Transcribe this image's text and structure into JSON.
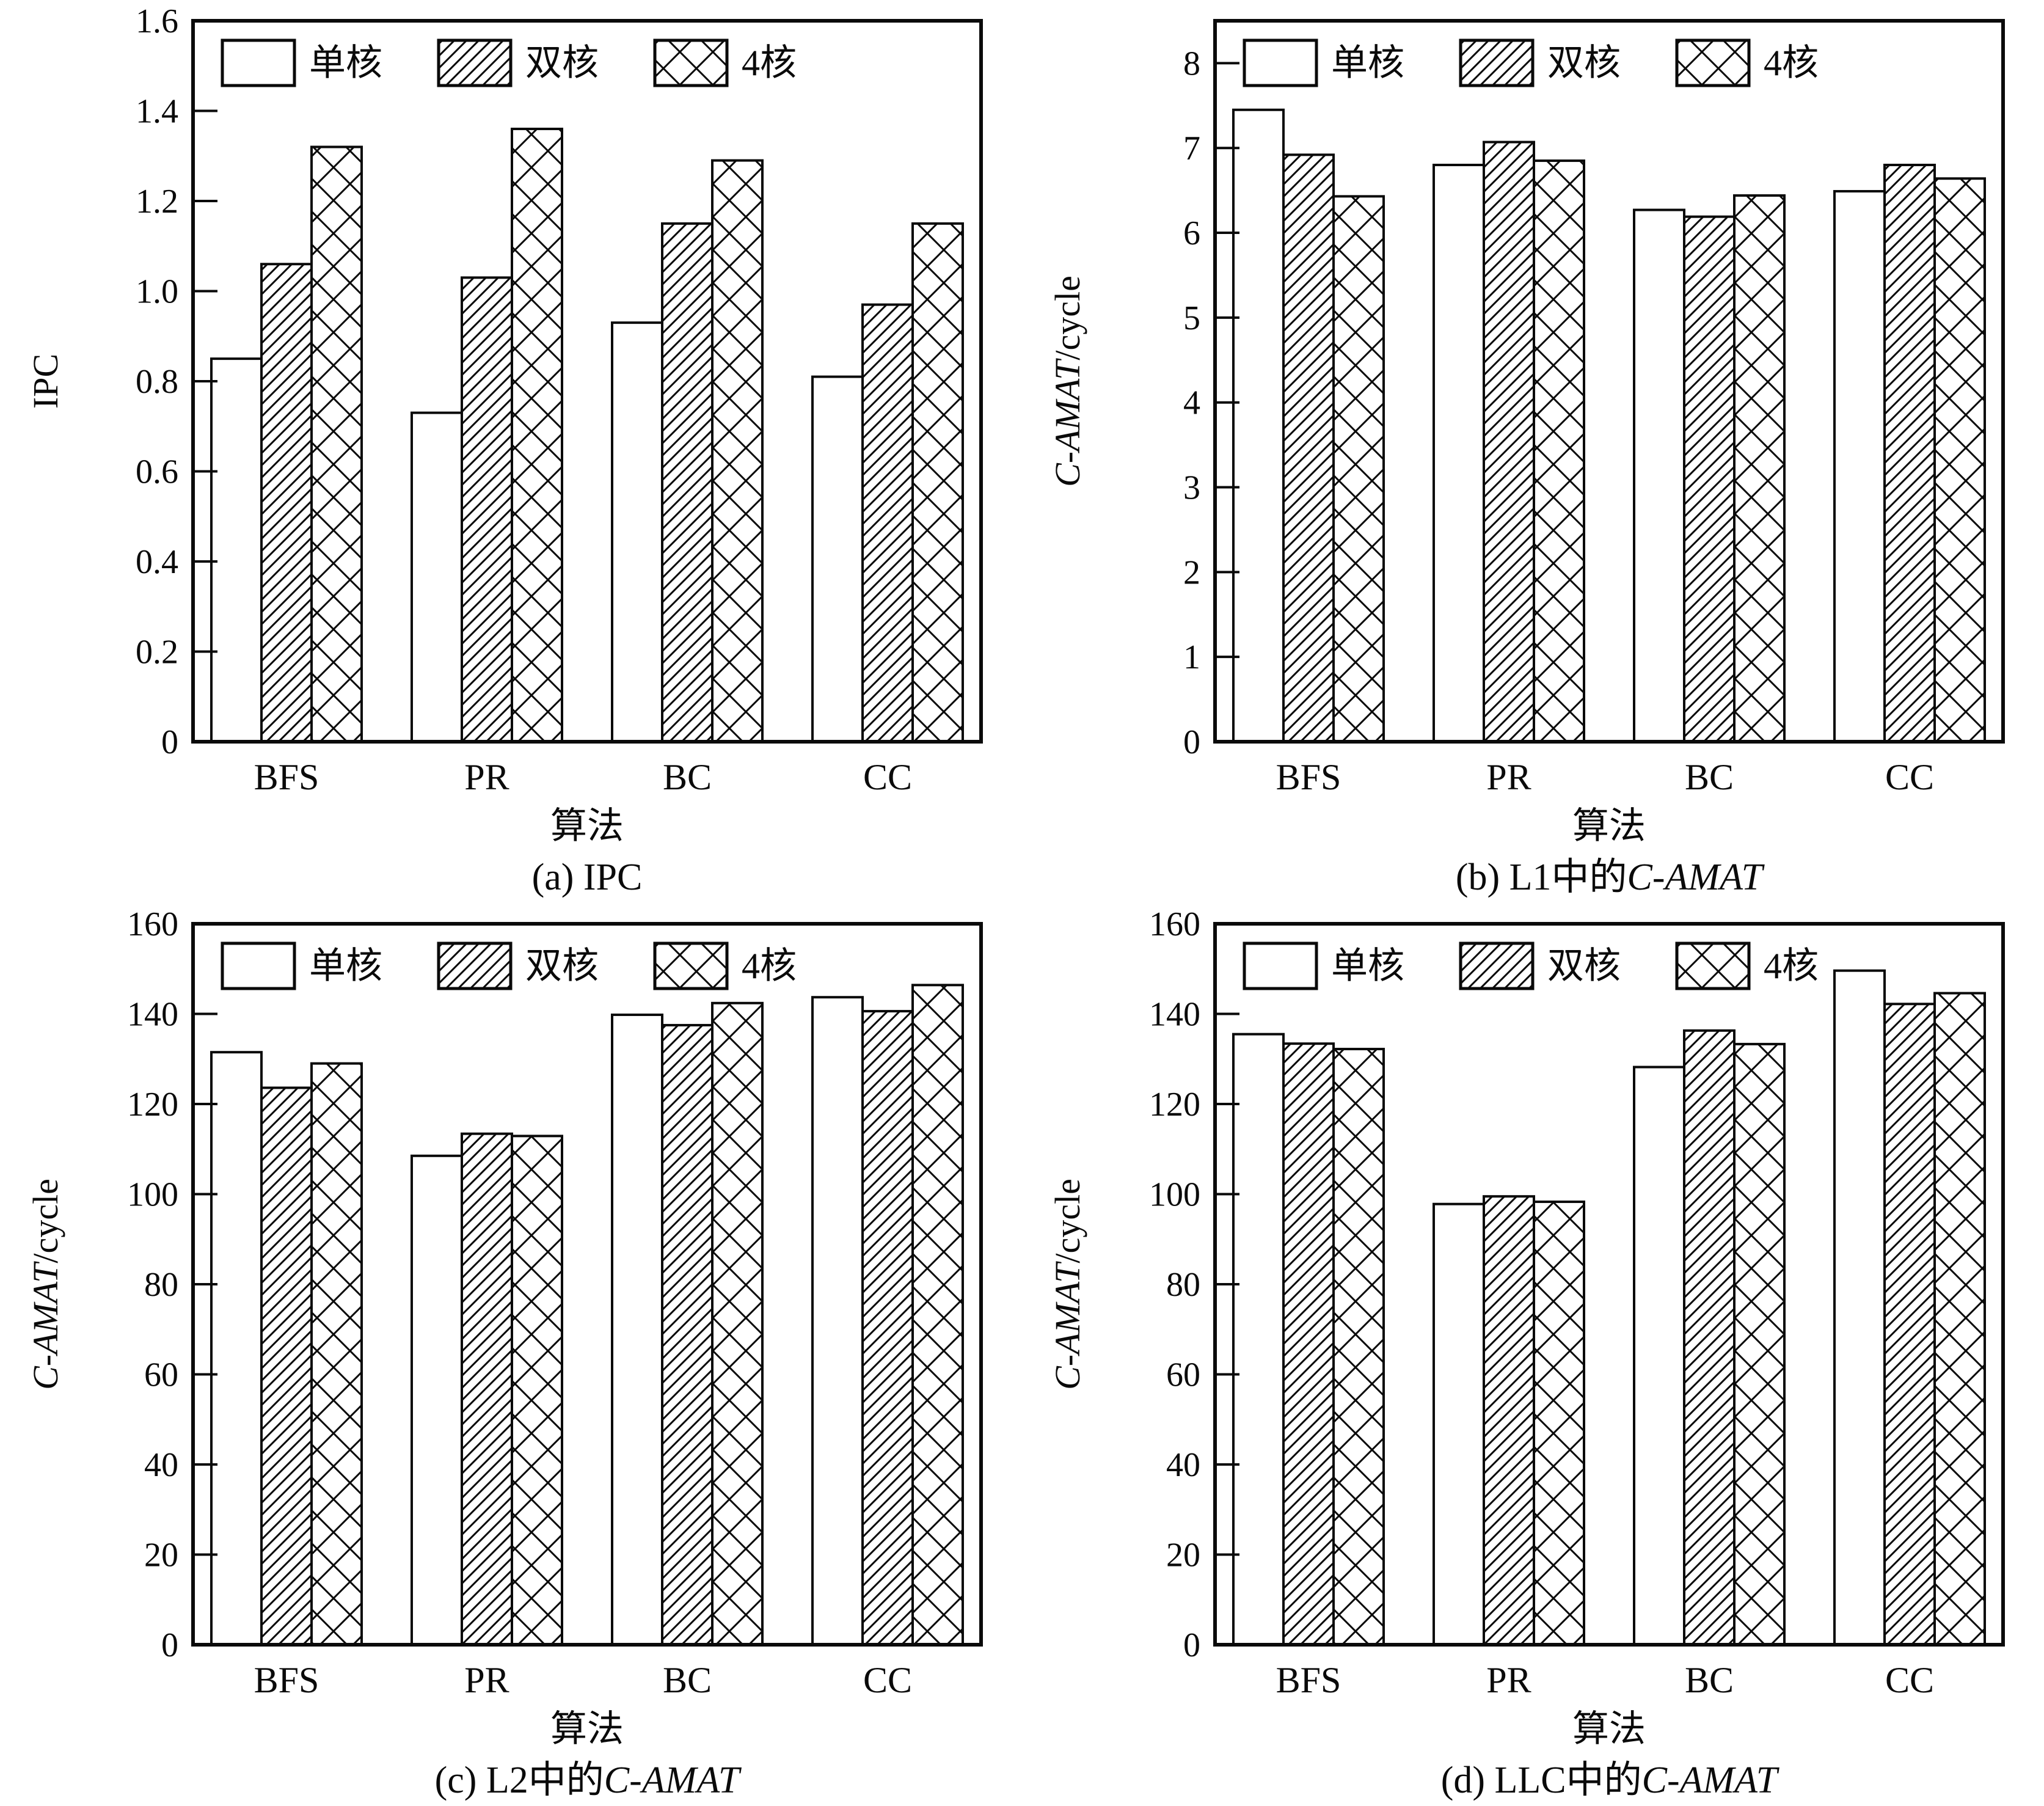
{
  "figure": {
    "background": "#ffffff",
    "ink_color": "#0a0a0a",
    "legend_labels": [
      "单核",
      "双核",
      "4核"
    ],
    "legend_patterns": [
      "solid-white",
      "diagonal-hatch",
      "cross-hatch"
    ]
  },
  "chart_data": [
    {
      "id": "a",
      "type": "bar",
      "caption": [
        {
          "text": "(a) IPC",
          "italic": false
        }
      ],
      "xlabel": "算法",
      "ylabel": [
        {
          "text": "IPC",
          "italic": false
        }
      ],
      "categories": [
        "BFS",
        "PR",
        "BC",
        "CC"
      ],
      "series": [
        {
          "name": "单核",
          "pattern": "solid-white",
          "values": [
            0.85,
            0.73,
            0.93,
            0.81
          ]
        },
        {
          "name": "双核",
          "pattern": "diagonal-hatch",
          "values": [
            1.06,
            1.03,
            1.15,
            0.97
          ]
        },
        {
          "name": "4核",
          "pattern": "cross-hatch",
          "values": [
            1.32,
            1.36,
            1.29,
            1.15
          ]
        }
      ],
      "ylim": [
        0,
        1.6
      ],
      "ytick_step": 0.2,
      "ytick_decimals": 1,
      "grid": false,
      "legend_position": "top-inside"
    },
    {
      "id": "b",
      "type": "bar",
      "caption": [
        {
          "text": "(b) L1中的",
          "italic": false
        },
        {
          "text": "C-AMAT",
          "italic": true
        }
      ],
      "xlabel": "算法",
      "ylabel": [
        {
          "text": "C-AMAT",
          "italic": true
        },
        {
          "text": "/cycle",
          "italic": false
        }
      ],
      "categories": [
        "BFS",
        "PR",
        "BC",
        "CC"
      ],
      "series": [
        {
          "name": "单核",
          "pattern": "solid-white",
          "values": [
            7.45,
            6.8,
            6.27,
            6.49
          ]
        },
        {
          "name": "双核",
          "pattern": "diagonal-hatch",
          "values": [
            6.92,
            7.07,
            6.19,
            6.8
          ]
        },
        {
          "name": "4核",
          "pattern": "cross-hatch",
          "values": [
            6.43,
            6.85,
            6.44,
            6.64
          ]
        }
      ],
      "ylim": [
        0,
        8.5
      ],
      "ytick_step": 1,
      "ytick_decimals": 0,
      "grid": false,
      "legend_position": "top-inside"
    },
    {
      "id": "c",
      "type": "bar",
      "caption": [
        {
          "text": "(c) L2中的",
          "italic": false
        },
        {
          "text": "C-AMAT",
          "italic": true
        }
      ],
      "xlabel": "算法",
      "ylabel": [
        {
          "text": "C-AMAT",
          "italic": true
        },
        {
          "text": "/cycle",
          "italic": false
        }
      ],
      "categories": [
        "BFS",
        "PR",
        "BC",
        "CC"
      ],
      "series": [
        {
          "name": "单核",
          "pattern": "solid-white",
          "values": [
            131.5,
            108.5,
            139.8,
            143.7
          ]
        },
        {
          "name": "双核",
          "pattern": "diagonal-hatch",
          "values": [
            123.6,
            113.4,
            137.5,
            140.6
          ]
        },
        {
          "name": "4核",
          "pattern": "cross-hatch",
          "values": [
            129.0,
            112.9,
            142.4,
            146.4
          ]
        }
      ],
      "ylim": [
        0,
        160
      ],
      "ytick_step": 20,
      "ytick_decimals": 0,
      "grid": false,
      "legend_position": "top-inside"
    },
    {
      "id": "d",
      "type": "bar",
      "caption": [
        {
          "text": "(d) LLC中的",
          "italic": false
        },
        {
          "text": "C-AMAT",
          "italic": true
        }
      ],
      "xlabel": "算法",
      "ylabel": [
        {
          "text": "C-AMAT",
          "italic": true
        },
        {
          "text": "/cycle",
          "italic": false
        }
      ],
      "categories": [
        "BFS",
        "PR",
        "BC",
        "CC"
      ],
      "series": [
        {
          "name": "单核",
          "pattern": "solid-white",
          "values": [
            135.5,
            97.8,
            128.2,
            149.6
          ]
        },
        {
          "name": "双核",
          "pattern": "diagonal-hatch",
          "values": [
            133.4,
            99.5,
            136.3,
            142.2
          ]
        },
        {
          "name": "4核",
          "pattern": "cross-hatch",
          "values": [
            132.2,
            98.3,
            133.3,
            144.6
          ]
        }
      ],
      "ylim": [
        0,
        160
      ],
      "ytick_step": 20,
      "ytick_decimals": 0,
      "grid": false,
      "legend_position": "top-inside"
    }
  ]
}
